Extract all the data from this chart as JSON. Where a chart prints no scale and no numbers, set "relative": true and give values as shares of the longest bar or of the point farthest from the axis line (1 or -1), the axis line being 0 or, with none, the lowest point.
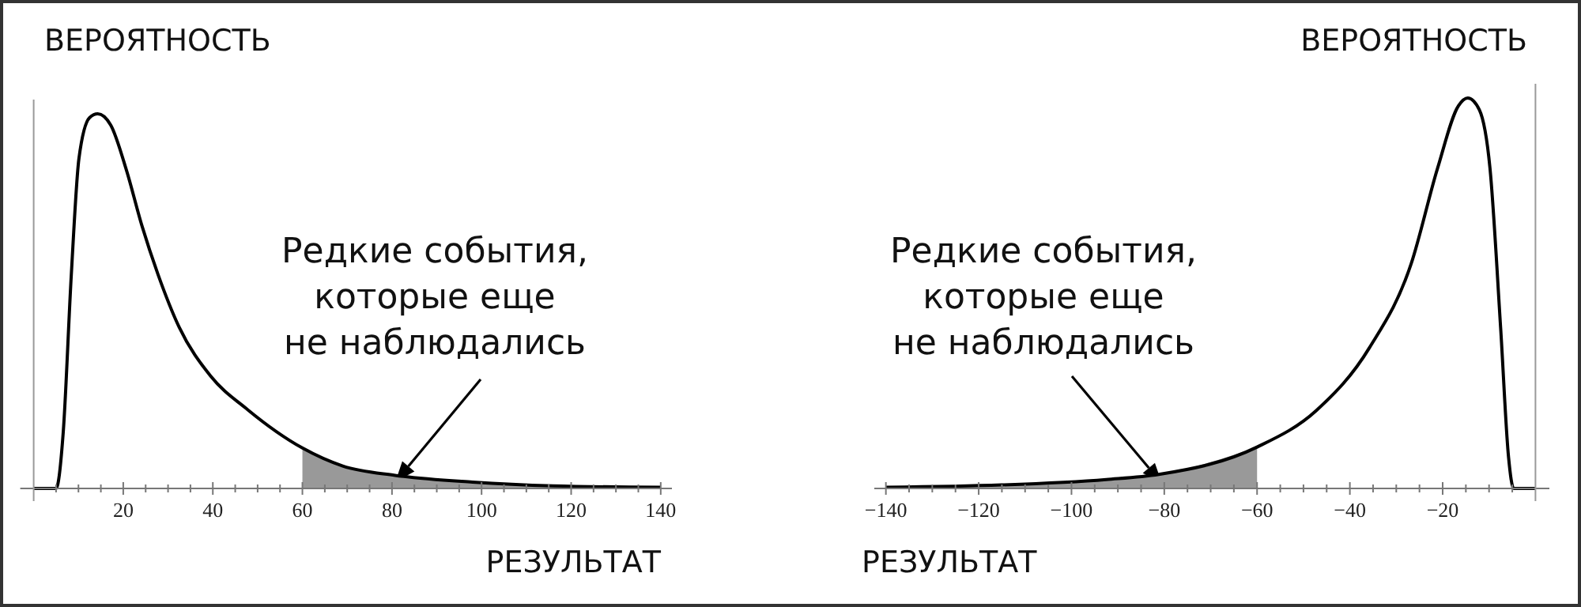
{
  "chart_data": [
    {
      "type": "line",
      "relative": true,
      "ylabel": "ВЕРОЯТНОСТЬ",
      "xlabel": "РЕЗУЛЬТАТ",
      "xlim": [
        -3,
        142.5
      ],
      "xticks": [
        {
          "value": 5,
          "label": null
        },
        {
          "value": 10,
          "label": null
        },
        {
          "value": 15,
          "label": null
        },
        20,
        {
          "value": 25,
          "label": null
        },
        {
          "value": 30,
          "label": null
        },
        {
          "value": 35,
          "label": null
        },
        40,
        {
          "value": 45,
          "label": null
        },
        {
          "value": 50,
          "label": null
        },
        {
          "value": 55,
          "label": null
        },
        60,
        {
          "value": 65,
          "label": null
        },
        {
          "value": 70,
          "label": null
        },
        {
          "value": 75,
          "label": null
        },
        80,
        {
          "value": 85,
          "label": null
        },
        {
          "value": 90,
          "label": null
        },
        {
          "value": 95,
          "label": null
        },
        100,
        {
          "value": 105,
          "label": null
        },
        {
          "value": 110,
          "label": null
        },
        {
          "value": 115,
          "label": null
        },
        120,
        {
          "value": 125,
          "label": null
        },
        {
          "value": 130,
          "label": null
        },
        {
          "value": 135,
          "label": null
        },
        140
      ],
      "series": [
        {
          "type": "area",
          "color": "#999999",
          "x": [
            60,
            69,
            80.7,
            98,
            116,
            140
          ],
          "values": [
            0.108,
            0.06,
            0.035,
            0.017,
            0.007,
            0.003
          ]
        },
        {
          "color": "#000000",
          "x": [
            0,
            5,
            6.6,
            8.4,
            10.1,
            12.5,
            14.3,
            17.2,
            20.7,
            24.2,
            27.8,
            32.5,
            39.5,
            47.8,
            60,
            69,
            80.7,
            98,
            116,
            140
          ],
          "values": [
            0,
            0,
            0.15,
            0.57,
            0.88,
            0.99,
            1,
            0.97,
            0.85,
            0.7,
            0.57,
            0.43,
            0.3,
            0.21,
            0.108,
            0.06,
            0.035,
            0.017,
            0.007,
            0.003
          ]
        }
      ],
      "annotations": [
        "Редкие события,\nкоторые еще\nне наблюдались"
      ]
    },
    {
      "type": "line",
      "relative": true,
      "ylabel": "ВЕРОЯТНОСТЬ",
      "xlabel": "РЕЗУЛЬТАТ",
      "xlim": [
        -142.5,
        3
      ],
      "xticks": [
        -140,
        {
          "value": -135,
          "label": null
        },
        {
          "value": -130,
          "label": null
        },
        {
          "value": -125,
          "label": null
        },
        -120,
        {
          "value": -115,
          "label": null
        },
        {
          "value": -110,
          "label": null
        },
        {
          "value": -105,
          "label": null
        },
        -100,
        {
          "value": -95,
          "label": null
        },
        {
          "value": -90,
          "label": null
        },
        {
          "value": -85,
          "label": null
        },
        -80,
        {
          "value": -75,
          "label": null
        },
        {
          "value": -70,
          "label": null
        },
        {
          "value": -65,
          "label": null
        },
        -60,
        {
          "value": -55,
          "label": null
        },
        {
          "value": -50,
          "label": null
        },
        {
          "value": -45,
          "label": null
        },
        -40,
        {
          "value": -35,
          "label": null
        },
        {
          "value": -30,
          "label": null
        },
        {
          "value": -25,
          "label": null
        },
        -20,
        {
          "value": -15,
          "label": null
        },
        {
          "value": -10,
          "label": null
        },
        {
          "value": -5,
          "label": null
        }
      ],
      "series": [
        {
          "type": "area",
          "color": "#999999",
          "x": [
            -140,
            -115.1,
            -92.5,
            -81.2,
            -60
          ],
          "values": [
            0.003,
            0.009,
            0.023,
            0.036,
            0.106
          ]
        },
        {
          "color": "#000000",
          "x": [
            -140,
            -115.1,
            -92.5,
            -81.2,
            -60,
            -47.2,
            -35.8,
            -26.8,
            -21.1,
            -16.6,
            -14.6,
            -12.1,
            -9.8,
            -7.5,
            -5.8,
            -4.7,
            0
          ],
          "values": [
            0.003,
            0.009,
            0.023,
            0.036,
            0.106,
            0.2,
            0.36,
            0.575,
            0.82,
            0.98,
            1,
            0.97,
            0.82,
            0.41,
            0.08,
            0,
            0
          ]
        }
      ],
      "annotations": [
        "Редкие события,\nкоторые еще\nне наблюдались"
      ]
    }
  ]
}
